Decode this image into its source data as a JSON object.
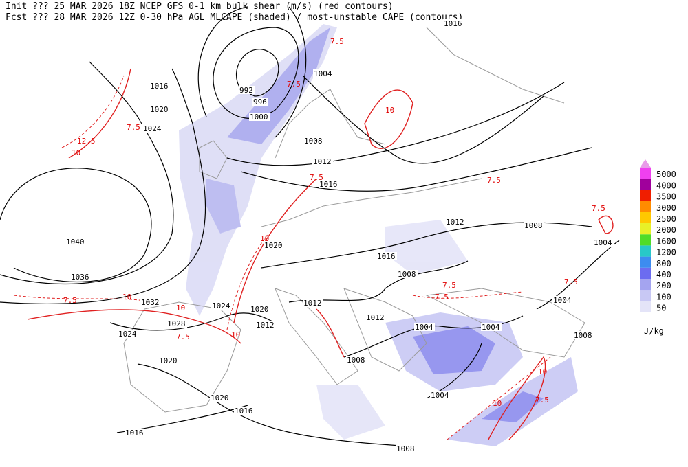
{
  "header": {
    "line1": "Init  ??? 25 MAR 2026 18Z  NCEP GFS 0-1 km bulk shear (m/s) (red contours)",
    "line2": "Fcst ??? 28 MAR 2026 12Z  0-30 hPa AGL MLCAPE (shaded) / most-unstable CAPE (contours)"
  },
  "colorbar": {
    "unit": "J/kg",
    "top_color": "#e89be8",
    "levels": [
      {
        "value": 50,
        "color": "#e4e4f8"
      },
      {
        "value": 100,
        "color": "#c8c8f4"
      },
      {
        "value": 200,
        "color": "#a4a4f0"
      },
      {
        "value": 400,
        "color": "#6c6cf0"
      },
      {
        "value": 800,
        "color": "#3c8cf0"
      },
      {
        "value": 1200,
        "color": "#28c8c8"
      },
      {
        "value": 1600,
        "color": "#50dc28"
      },
      {
        "value": 2000,
        "color": "#e8f028"
      },
      {
        "value": 2500,
        "color": "#ffc800"
      },
      {
        "value": 3000,
        "color": "#ff8c00"
      },
      {
        "value": 3500,
        "color": "#f01e00"
      },
      {
        "value": 4000,
        "color": "#a0009c"
      },
      {
        "value": 5000,
        "color": "#f040f0"
      }
    ]
  },
  "pressure_labels": [
    1016,
    1016,
    1020,
    1024,
    992,
    996,
    1000,
    1004,
    1008,
    1012,
    1016,
    1040,
    1036,
    1020,
    1032,
    1028,
    1024,
    1020,
    1024,
    1020,
    1012,
    1012,
    1012,
    1016,
    1008,
    1012,
    1008,
    1004,
    1004,
    1004,
    1004,
    1008,
    1008,
    1004,
    1020,
    1016,
    1016,
    1008
  ],
  "shear_labels": [
    7.5,
    12.5,
    10,
    7.5,
    7.5,
    10,
    7.5,
    7.5,
    7.5,
    10,
    7.5,
    10,
    10,
    7.5,
    10,
    7.5,
    7.5,
    7.5,
    10,
    7.5,
    10
  ]
}
